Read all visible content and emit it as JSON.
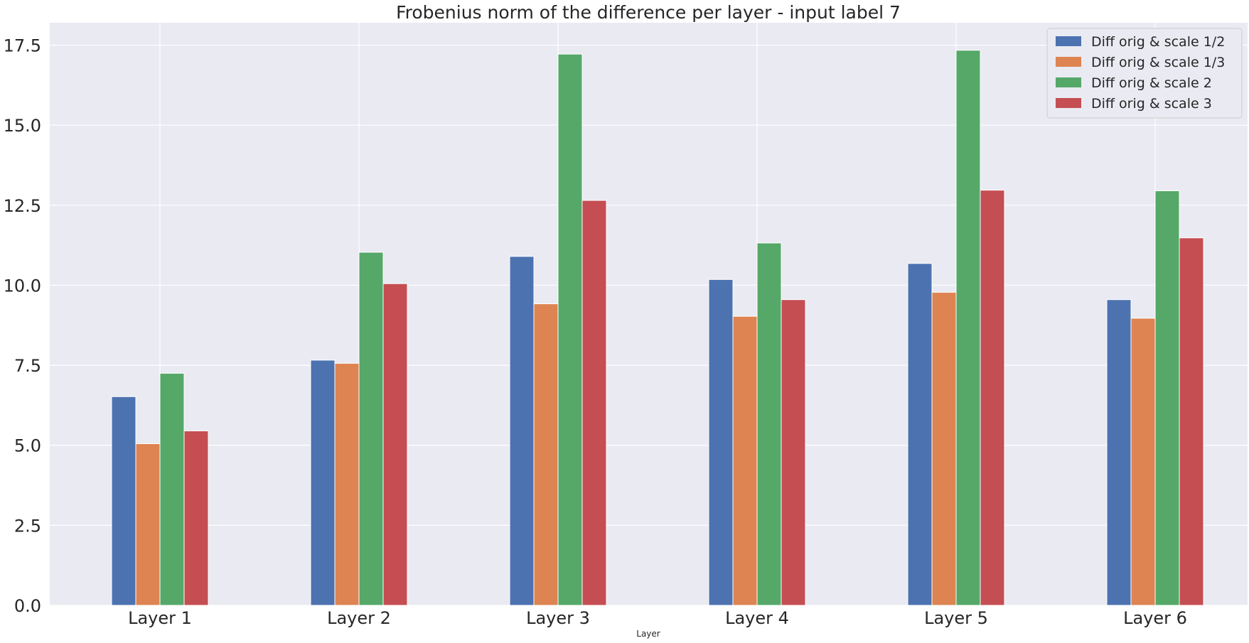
{
  "chart_data": {
    "type": "bar",
    "title": "Frobenius norm of the difference per layer - input label 7",
    "xlabel": "Layer",
    "ylabel": "",
    "categories": [
      "Layer 1",
      "Layer 2",
      "Layer 3",
      "Layer 4",
      "Layer 5",
      "Layer 6"
    ],
    "ylim": [
      0,
      18.2
    ],
    "yticks": [
      "0.0",
      "2.5",
      "5.0",
      "7.5",
      "10.0",
      "12.5",
      "15.0",
      "17.5"
    ],
    "grid": true,
    "legend_position": "top-right",
    "series": [
      {
        "name": "Diff orig & scale 1/2",
        "color": "#4c72b0",
        "values": [
          6.52,
          7.66,
          10.9,
          10.18,
          10.68,
          9.55
        ]
      },
      {
        "name": "Diff orig & scale 1/3",
        "color": "#dd8452",
        "values": [
          5.05,
          7.56,
          9.42,
          9.03,
          9.78,
          8.97
        ]
      },
      {
        "name": "Diff orig & scale 2",
        "color": "#55a868",
        "values": [
          7.25,
          11.03,
          17.22,
          11.32,
          17.34,
          12.95
        ]
      },
      {
        "name": "Diff orig & scale 3",
        "color": "#c44e52",
        "values": [
          5.45,
          10.05,
          12.65,
          9.55,
          12.97,
          11.48
        ]
      }
    ]
  }
}
